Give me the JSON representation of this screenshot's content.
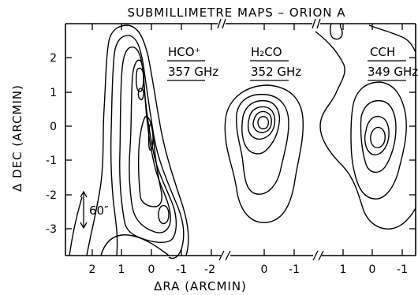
{
  "title": "SUBMILLIMETRE   MAPS – ORION A",
  "ylabel": "Δ DEC   (ARCMIN)",
  "xlabel": "ΔRA   (ARCMIN)",
  "scale_bar_label": "60″",
  "maps": [
    {
      "species": "HCO⁺",
      "frequency": "357 GHz",
      "ra_ticks": [
        "2",
        "1",
        "0",
        "-1",
        "-2"
      ]
    },
    {
      "species": "H₂CO",
      "frequency": "352 GHz",
      "ra_ticks": [
        "0",
        "-1"
      ]
    },
    {
      "species": "CCH",
      "frequency": "349 GHz",
      "ra_ticks": [
        "1",
        "0",
        "-1"
      ]
    }
  ],
  "dec_ticks": [
    "2",
    "1",
    "0",
    "-1",
    "-2",
    "-3"
  ]
}
